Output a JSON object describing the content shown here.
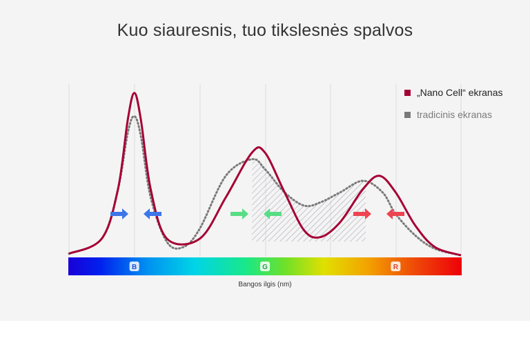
{
  "title": "Kuo siauresnis, tuo tikslesnės spalvos",
  "chart_data": {
    "type": "line",
    "title": "Kuo siauresnis, tuo tikslesnės spalvos",
    "xlabel": "Bangos ilgis (nm)",
    "ylabel": "",
    "xlim": [
      0,
      6
    ],
    "ylim": [
      0,
      1
    ],
    "color_bands": [
      "B",
      "G",
      "R"
    ],
    "color_band_positions": [
      1,
      3,
      5
    ],
    "series": [
      {
        "name": "„Nano Cell“ ekranas",
        "color": "#a50034",
        "style": "solid",
        "x": [
          0,
          0.5,
          0.75,
          0.9,
          1.0,
          1.1,
          1.25,
          1.5,
          2.0,
          2.4,
          2.8,
          3.0,
          3.3,
          3.6,
          3.85,
          4.15,
          4.5,
          4.75,
          5.0,
          5.3,
          5.6,
          6.0
        ],
        "values": [
          0.01,
          0.1,
          0.4,
          0.82,
          0.98,
          0.82,
          0.4,
          0.1,
          0.1,
          0.35,
          0.62,
          0.62,
          0.38,
          0.15,
          0.11,
          0.2,
          0.4,
          0.48,
          0.38,
          0.18,
          0.05,
          0.0
        ]
      },
      {
        "name": "tradicinis ekranas",
        "color": "#7a7a7a",
        "style": "dotted",
        "x": [
          0,
          0.5,
          0.75,
          0.9,
          1.0,
          1.1,
          1.25,
          1.5,
          1.75,
          2.0,
          2.4,
          2.8,
          3.0,
          3.3,
          3.6,
          3.85,
          4.15,
          4.5,
          4.8,
          5.0,
          5.3,
          5.6,
          6.0
        ],
        "values": [
          0.01,
          0.1,
          0.4,
          0.74,
          0.84,
          0.72,
          0.35,
          0.08,
          0.05,
          0.16,
          0.48,
          0.58,
          0.52,
          0.38,
          0.3,
          0.32,
          0.38,
          0.45,
          0.38,
          0.25,
          0.12,
          0.04,
          0.0
        ]
      }
    ]
  },
  "legend": {
    "nano_label": "„Nano Cell“ ekranas",
    "nano_color": "#a50034",
    "trad_label": "tradicinis ekranas",
    "trad_color": "#7a7a7a"
  }
}
